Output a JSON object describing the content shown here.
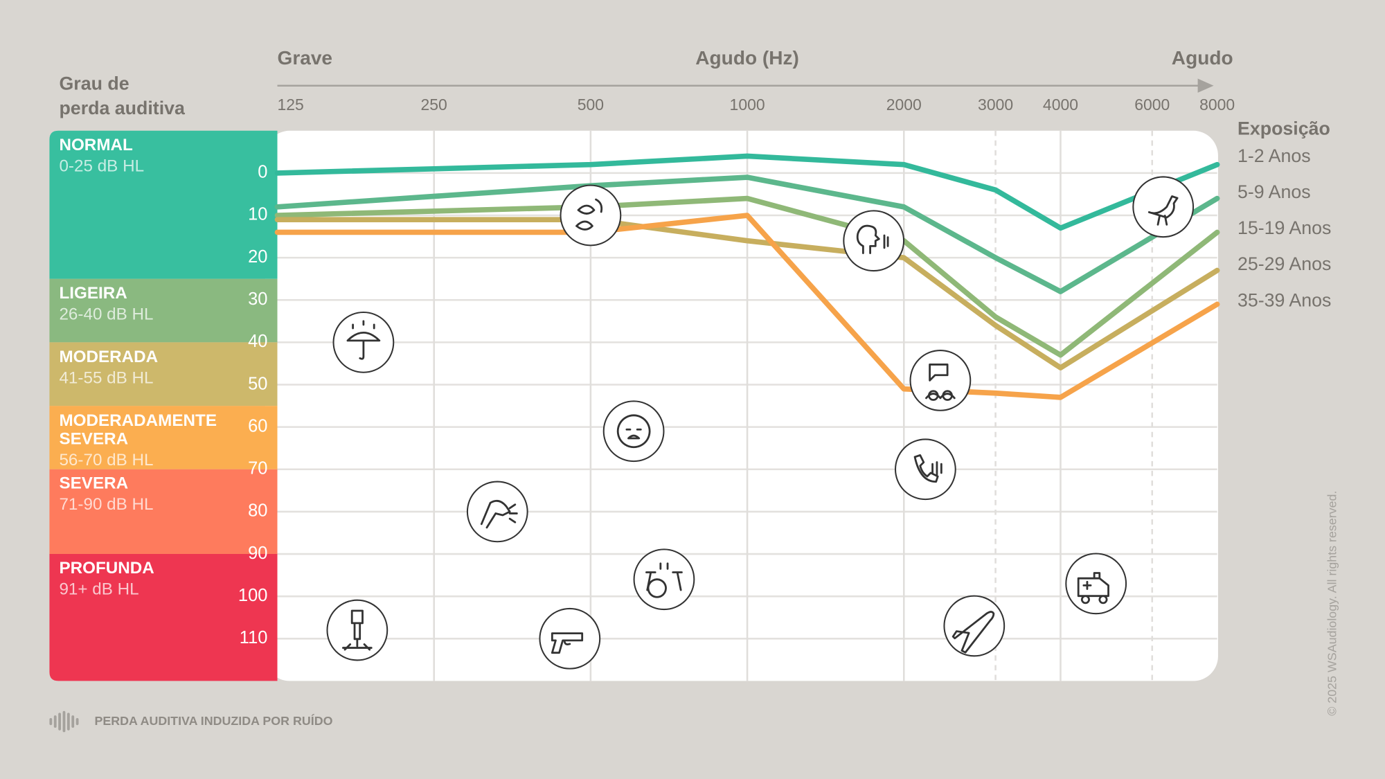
{
  "chart_data": {
    "type": "line",
    "y_axis_label": [
      "Grau de",
      "perda auditiva"
    ],
    "x_annotations": {
      "low": "Grave",
      "center": "Agudo (Hz)",
      "high": "Agudo"
    },
    "legend_title": "Exposição",
    "x_log_scale": true,
    "y_reversed": true,
    "grid": true,
    "xlim": [
      125,
      8000
    ],
    "xticks": [
      125,
      250,
      500,
      1000,
      2000,
      3000,
      4000,
      6000,
      8000
    ],
    "ylim": [
      -10,
      120
    ],
    "yticks": [
      0,
      10,
      20,
      30,
      40,
      50,
      60,
      70,
      80,
      90,
      100,
      110
    ],
    "x": [
      125,
      500,
      1000,
      2000,
      3000,
      4000,
      8000
    ],
    "series": [
      {
        "name": "1-2 Anos",
        "color": "#33b99b",
        "values": [
          0,
          -2,
          -4,
          -2,
          4,
          13,
          -2
        ]
      },
      {
        "name": "5-9 Anos",
        "color": "#5cb78c",
        "values": [
          8,
          3,
          1,
          8,
          20,
          28,
          6
        ]
      },
      {
        "name": "15-19 Anos",
        "color": "#8fb877",
        "values": [
          10,
          8,
          6,
          16,
          34,
          43,
          14
        ]
      },
      {
        "name": "25-29 Anos",
        "color": "#c7ae5e",
        "values": [
          11,
          11,
          16,
          20,
          36,
          46,
          23
        ]
      },
      {
        "name": "35-39 Anos",
        "color": "#f6a34a",
        "values": [
          14,
          14,
          10,
          51,
          52,
          53,
          31
        ]
      }
    ],
    "bands": [
      {
        "label": "NORMAL",
        "range": "0-25 dB HL",
        "to": 25,
        "color": "#38bf9f"
      },
      {
        "label": "LIGEIRA",
        "range": "26-40 dB HL",
        "to": 40,
        "color": "#8ab980"
      },
      {
        "label": "MODERADA",
        "range": "41-55 dB HL",
        "to": 55,
        "color": "#cdb86b"
      },
      {
        "label": "MODERADAMENTE SEVERA",
        "range": "56-70 dB HL",
        "to": 70,
        "color": "#fbae50"
      },
      {
        "label": "SEVERA",
        "range": "71-90 dB HL",
        "to": 90,
        "color": "#fe7b5d"
      },
      {
        "label": "PROFUNDA",
        "range": "91+ dB HL",
        "color": "#ee3651"
      }
    ],
    "sound_markers": {
      "x": [
        500,
        1750,
        6300,
        183,
        2350,
        605,
        2200,
        331,
        692,
        4680,
        178,
        456,
        2730
      ],
      "y": [
        10,
        16,
        8,
        40,
        49,
        61,
        70,
        80,
        96,
        97,
        108,
        110,
        107
      ]
    },
    "footer": "PERDA AUDITIVA INDUZIDA POR RUÍDO",
    "copyright": "© 2025 WSAudiology. All rights reserved."
  }
}
